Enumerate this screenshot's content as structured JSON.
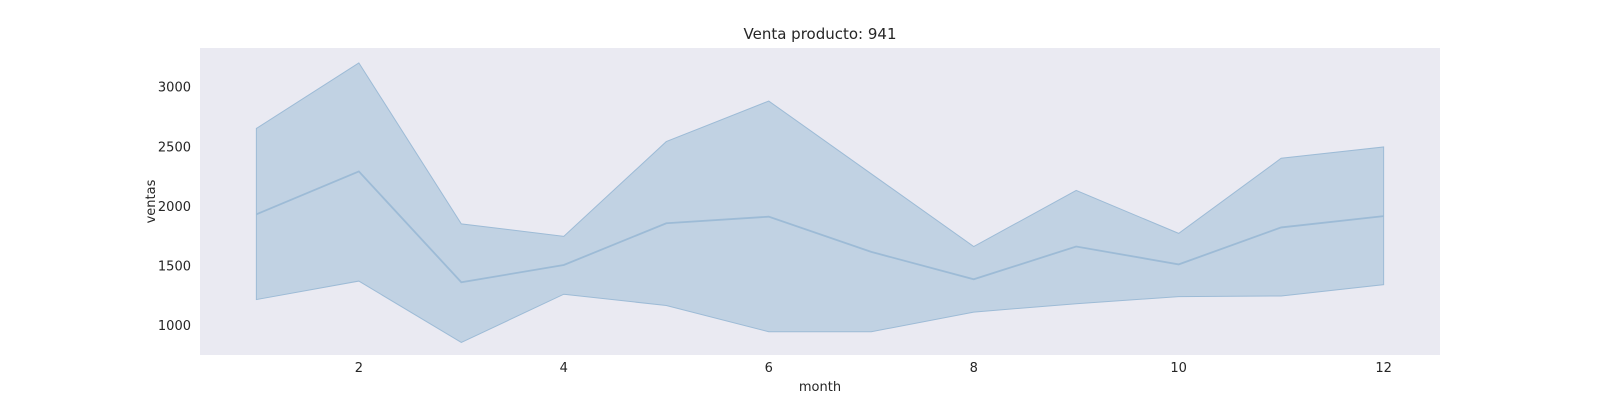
{
  "chart_data": {
    "type": "line",
    "title": "Venta producto: 941",
    "xlabel": "month",
    "ylabel": "ventas",
    "x": [
      1,
      2,
      3,
      4,
      5,
      6,
      7,
      8,
      9,
      10,
      11,
      12
    ],
    "series": [
      {
        "values": [
          1930,
          2290,
          1360,
          1505,
          1855,
          1910,
          1615,
          1385,
          1660,
          1510,
          1820,
          1915
        ],
        "ci_upper": [
          2650,
          3200,
          1850,
          1745,
          2540,
          2880,
          2270,
          1660,
          2130,
          1770,
          2400,
          2495
        ],
        "ci_lower": [
          1215,
          1370,
          855,
          1260,
          1165,
          945,
          945,
          1110,
          1180,
          1240,
          1245,
          1340
        ],
        "color": "#9dbbd6"
      }
    ],
    "xticks": [
      2,
      4,
      6,
      8,
      10,
      12
    ],
    "yticks": [
      1000,
      1500,
      2000,
      2500,
      3000
    ],
    "xlim": [
      0.45,
      12.55
    ],
    "ylim": [
      750,
      3325
    ],
    "grid": false,
    "plot_background": "#eaeaf2",
    "band_color": "#c1d2e3"
  }
}
